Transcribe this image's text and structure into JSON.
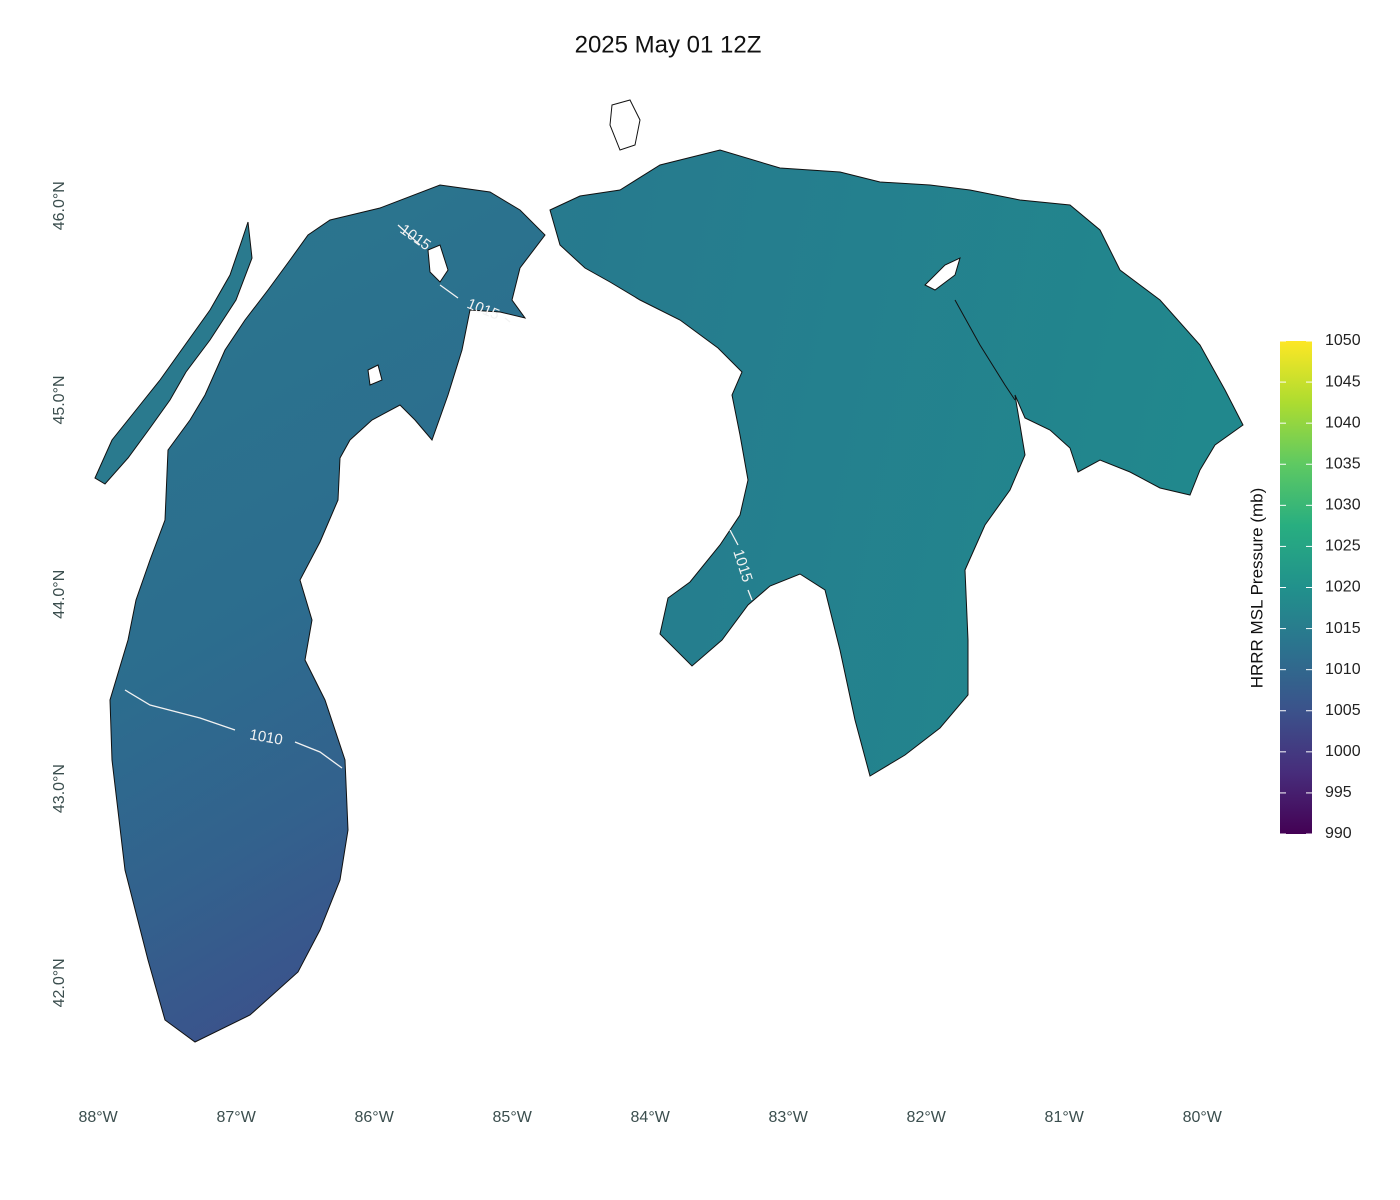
{
  "map": {
    "type": "map",
    "title": "2025 May 01 12Z",
    "xlim": [
      -88.03,
      -79.69
    ],
    "ylim": [
      41.68,
      46.57
    ],
    "xticks": [
      {
        "value": -88,
        "label": "88°W"
      },
      {
        "value": -87,
        "label": "87°W"
      },
      {
        "value": -86,
        "label": "86°W"
      },
      {
        "value": -85,
        "label": "85°W"
      },
      {
        "value": -84,
        "label": "84°W"
      },
      {
        "value": -83,
        "label": "83°W"
      },
      {
        "value": -82,
        "label": "82°W"
      },
      {
        "value": -81,
        "label": "81°W"
      },
      {
        "value": -80,
        "label": "80°W"
      }
    ],
    "yticks": [
      {
        "value": 42,
        "label": "42.0°N"
      },
      {
        "value": 43,
        "label": "43.0°N"
      },
      {
        "value": 44,
        "label": "44.0°N"
      },
      {
        "value": 45,
        "label": "45.0°N"
      },
      {
        "value": 46,
        "label": "46.0°N"
      }
    ],
    "colorbar": {
      "title": "HRRR MSL Pressure (mb)",
      "lim": [
        990,
        1050
      ],
      "ticks": [
        990,
        995,
        1000,
        1005,
        1010,
        1015,
        1020,
        1025,
        1030,
        1035,
        1040,
        1045,
        1050
      ]
    },
    "contour_labels": [
      1015,
      1015,
      1015,
      1010
    ]
  }
}
